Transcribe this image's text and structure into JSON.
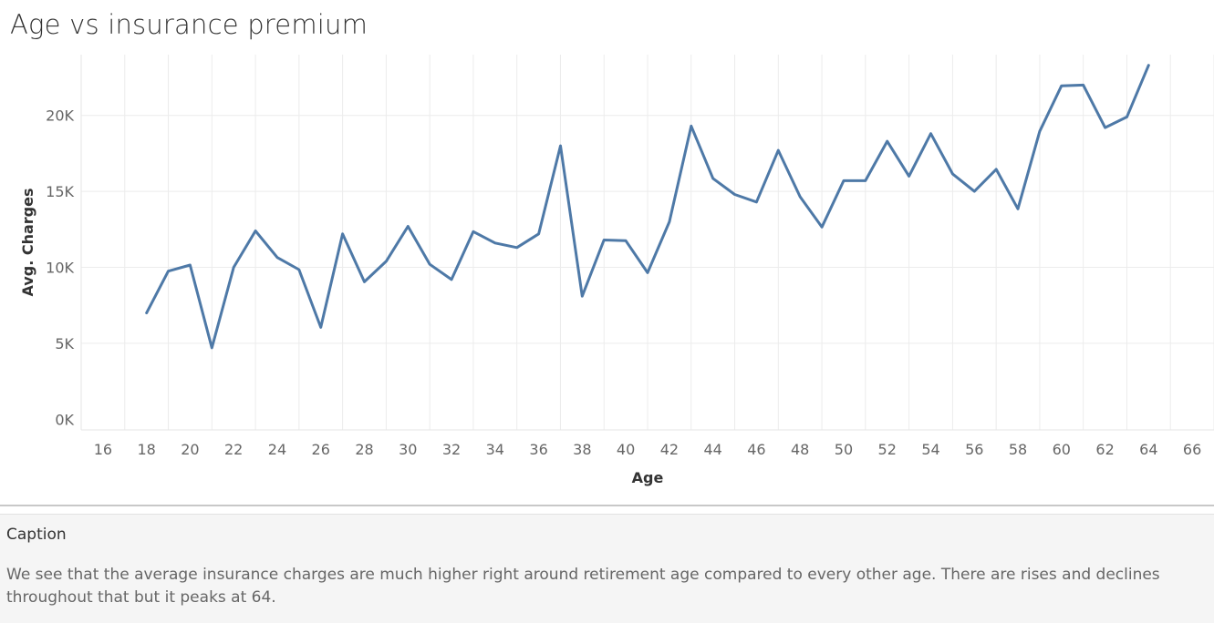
{
  "title": "Age vs insurance premium",
  "colors": {
    "line": "#4e79a7",
    "grid": "#ececec",
    "tick": "#666666"
  },
  "chart_data": {
    "type": "line",
    "title": "Age vs insurance premium",
    "xlabel": "Age",
    "ylabel": "Avg. Charges",
    "xlim": [
      15,
      67
    ],
    "ylim": [
      -700,
      24000
    ],
    "x_ticks": [
      16,
      18,
      20,
      22,
      24,
      26,
      28,
      30,
      32,
      34,
      36,
      38,
      40,
      42,
      44,
      46,
      48,
      50,
      52,
      54,
      56,
      58,
      60,
      62,
      64,
      66
    ],
    "y_ticks": [
      0,
      5000,
      10000,
      15000,
      20000
    ],
    "y_tick_labels": [
      "0K",
      "5K",
      "10K",
      "15K",
      "20K"
    ],
    "grid": true,
    "series": [
      {
        "x": [
          18,
          19,
          20,
          21,
          22,
          23,
          24,
          25,
          26,
          27,
          28,
          29,
          30,
          31,
          32,
          33,
          34,
          35,
          36,
          37,
          38,
          39,
          40,
          41,
          42,
          43,
          44,
          45,
          46,
          47,
          48,
          49,
          50,
          51,
          52,
          53,
          54,
          55,
          56,
          57,
          58,
          59,
          60,
          61,
          62,
          63,
          64
        ],
        "values": [
          7000,
          9750,
          10150,
          4700,
          10000,
          12400,
          10650,
          9850,
          6050,
          12200,
          9050,
          10400,
          12700,
          10200,
          9200,
          12350,
          11600,
          11300,
          12200,
          18000,
          8100,
          11800,
          11750,
          9650,
          13000,
          19300,
          15850,
          14800,
          14300,
          17700,
          14650,
          12650,
          15700,
          15700,
          18300,
          16000,
          18800,
          16150,
          15000,
          16450,
          13850,
          18950,
          21950,
          22000,
          19200,
          19900,
          23300
        ]
      }
    ]
  },
  "caption": {
    "heading": "Caption",
    "text": "We see that the average insurance charges are much higher right around retirement age compared to every other age. There are rises and declines throughout that but it peaks at 64."
  }
}
